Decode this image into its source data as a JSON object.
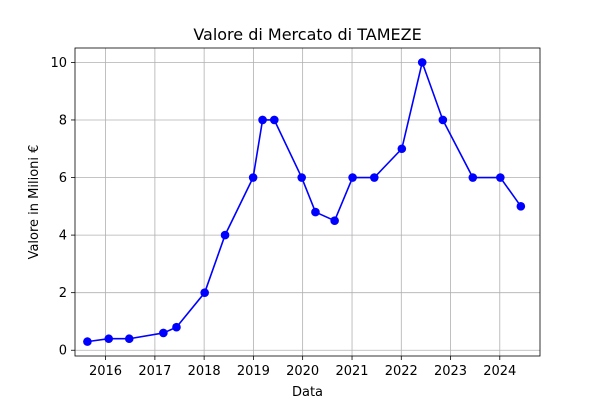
{
  "chart_data": {
    "type": "line",
    "title": "Valore di Mercato di TAMEZE",
    "xlabel": "Data",
    "ylabel": "Valore in Milioni €",
    "x_ticks": [
      "2016",
      "2017",
      "2018",
      "2019",
      "2020",
      "2021",
      "2022",
      "2023",
      "2024"
    ],
    "y_ticks": [
      0,
      2,
      4,
      6,
      8,
      10
    ],
    "xlim": [
      "2015-05-20",
      "2024-10-25"
    ],
    "ylim": [
      -0.2,
      10.5
    ],
    "grid": true,
    "line_color": "#0000ff",
    "series": [
      {
        "x": [
          "2015-08-20",
          "2016-01-25",
          "2016-06-25",
          "2017-03-05",
          "2017-06-10",
          "2018-01-05",
          "2018-06-05",
          "2018-12-30",
          "2019-03-10",
          "2019-06-05",
          "2019-12-25",
          "2020-04-05",
          "2020-08-25",
          "2021-01-05",
          "2021-06-15",
          "2022-01-05",
          "2022-06-05",
          "2022-11-05",
          "2023-06-15",
          "2024-01-05",
          "2024-06-05"
        ],
        "values": [
          0.3,
          0.4,
          0.4,
          0.6,
          0.8,
          2,
          4,
          6,
          8,
          8,
          6,
          4.8,
          4.5,
          6,
          6,
          7,
          10,
          8,
          6,
          6,
          5
        ]
      }
    ]
  }
}
